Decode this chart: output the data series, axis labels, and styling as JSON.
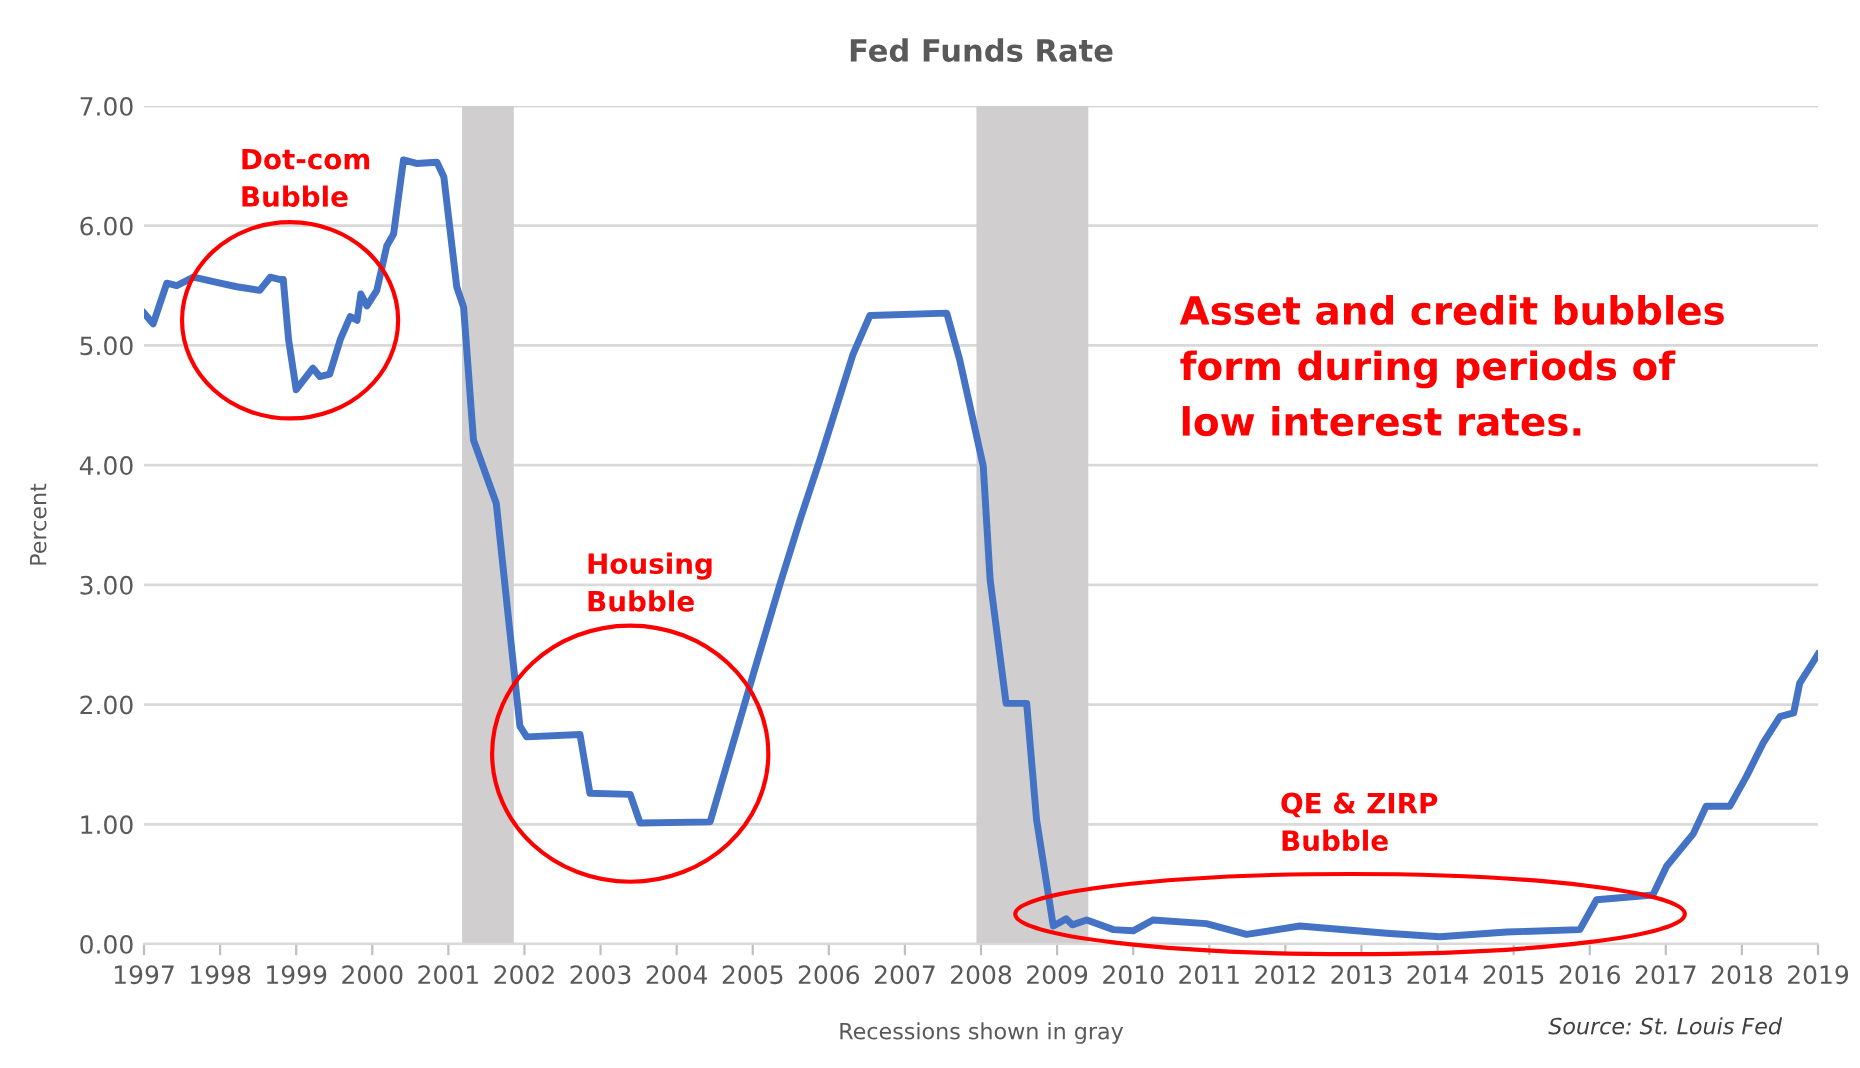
{
  "chart_data": {
    "type": "line",
    "title": "Fed Funds Rate",
    "xlabel": "Recessions shown in gray",
    "ylabel": "Percent",
    "x": [
      1997.0,
      1997.12,
      1997.3,
      1997.43,
      1997.65,
      1998.0,
      1998.22,
      1998.52,
      1998.66,
      1998.79,
      1998.83,
      1998.9,
      1999.0,
      1999.22,
      1999.31,
      1999.44,
      1999.58,
      1999.71,
      1999.8,
      1999.85,
      1999.93,
      2000.06,
      2000.19,
      2000.28,
      2000.41,
      2000.58,
      2000.85,
      2000.94,
      2001.11,
      2001.2,
      2001.33,
      2001.63,
      2001.94,
      2002.03,
      2002.73,
      2002.86,
      2003.39,
      2003.52,
      2004.44,
      2005.01,
      2005.36,
      2005.62,
      2005.88,
      2006.32,
      2006.54,
      2007.55,
      2007.72,
      2008.03,
      2008.12,
      2008.33,
      2008.6,
      2008.73,
      2008.95,
      2009.12,
      2009.2,
      2009.39,
      2009.74,
      2010.0,
      2010.26,
      2010.96,
      2011.49,
      2012.19,
      2013.33,
      2014.03,
      2014.91,
      2015.87,
      2016.09,
      2016.83,
      2017.01,
      2017.36,
      2017.53,
      2017.84,
      2018.06,
      2018.28,
      2018.5,
      2018.68,
      2018.76,
      2019.0
    ],
    "series": [
      {
        "color": "#4472c4",
        "values": [
          5.27,
          5.18,
          5.52,
          5.5,
          5.57,
          5.52,
          5.49,
          5.46,
          5.57,
          5.55,
          5.55,
          5.05,
          4.63,
          4.81,
          4.74,
          4.76,
          5.05,
          5.24,
          5.21,
          5.43,
          5.33,
          5.46,
          5.83,
          5.93,
          6.55,
          6.52,
          6.53,
          6.41,
          5.49,
          5.32,
          4.21,
          3.68,
          1.82,
          1.73,
          1.75,
          1.26,
          1.25,
          1.01,
          1.02,
          2.26,
          3.01,
          3.54,
          4.04,
          4.93,
          5.25,
          5.27,
          4.88,
          3.99,
          3.04,
          2.01,
          2.01,
          1.04,
          0.15,
          0.21,
          0.16,
          0.2,
          0.12,
          0.11,
          0.2,
          0.17,
          0.08,
          0.15,
          0.09,
          0.06,
          0.1,
          0.12,
          0.37,
          0.41,
          0.65,
          0.92,
          1.15,
          1.15,
          1.4,
          1.68,
          1.9,
          1.93,
          2.18,
          2.42
        ]
      }
    ],
    "xlim": [
      1997,
      2019
    ],
    "xticks": [
      1997,
      1998,
      1999,
      2000,
      2001,
      2002,
      2003,
      2004,
      2005,
      2006,
      2007,
      2008,
      2009,
      2010,
      2011,
      2012,
      2013,
      2014,
      2015,
      2016,
      2017,
      2018,
      2019
    ],
    "ylim": [
      0,
      7
    ],
    "yticks": [
      {
        "value": 0,
        "label": "0.00"
      },
      {
        "value": 1,
        "label": "1.00"
      },
      {
        "value": 2,
        "label": "2.00"
      },
      {
        "value": 3,
        "label": "3.00"
      },
      {
        "value": 4,
        "label": "4.00"
      },
      {
        "value": 5,
        "label": "5.00"
      },
      {
        "value": 6,
        "label": "6.00"
      },
      {
        "value": 7,
        "label": "7.00"
      }
    ],
    "grid": "y",
    "legend": false,
    "marker": "none",
    "line_style": "solid",
    "bands": [
      {
        "axis": "x",
        "from": 2001.18,
        "to": 2001.86,
        "color": "#d0cece"
      },
      {
        "axis": "x",
        "from": 2007.94,
        "to": 2009.41,
        "color": "#d0cece"
      }
    ],
    "annotations": [
      "Dot-com\nBubble",
      "Housing\nBubble",
      "QE & ZIRP\nBubble",
      "Asset and credit bubbles\nform during periods of\nlow interest rates.",
      "Source: St. Louis Fed"
    ]
  }
}
